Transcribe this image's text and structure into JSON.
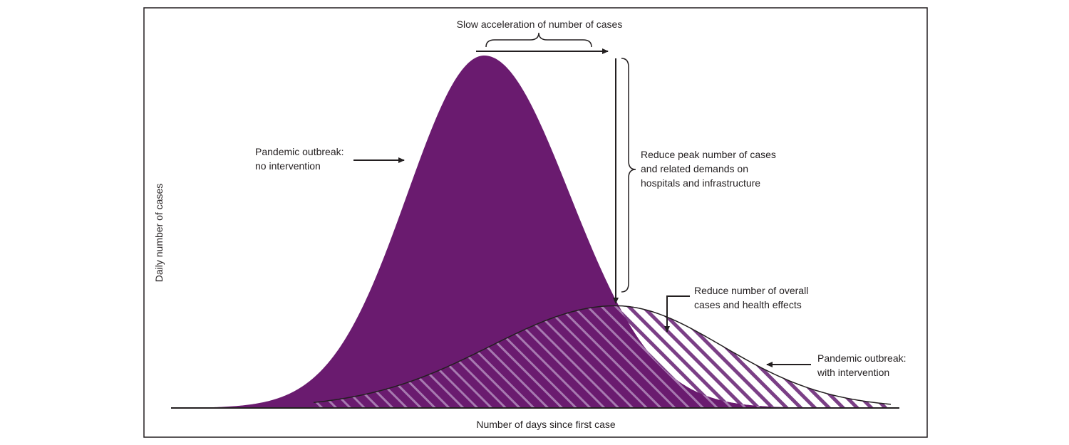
{
  "labels": {
    "x_axis": "Number of days since first case",
    "y_axis": "Daily number of cases",
    "slow_acceleration": "Slow acceleration of number of cases",
    "no_intervention": [
      "Pandemic outbreak:",
      "no intervention"
    ],
    "reduce_peak": [
      "Reduce peak number of cases",
      "and related demands on",
      "hospitals and infrastructure"
    ],
    "reduce_overall": [
      "Reduce number of overall",
      "cases and health effects"
    ],
    "with_intervention": [
      "Pandemic outbreak:",
      "with intervention"
    ]
  },
  "curves": [
    {
      "id": "no_intervention",
      "peak_day": 0.43,
      "peak_height": 1.0,
      "fill": "#6a1b6f",
      "style": "solid"
    },
    {
      "id": "with_intervention",
      "peak_day": 0.61,
      "peak_height": 0.29,
      "fill": "#7b3f86",
      "style": "hatched",
      "stroke": "#231f20"
    }
  ],
  "colors": {
    "curve_fill": "#6a1b6f",
    "hatch_light": "#ffffff",
    "hatch_dark": "#7b3f86",
    "ink": "#231f20",
    "frame": "#231f20"
  }
}
